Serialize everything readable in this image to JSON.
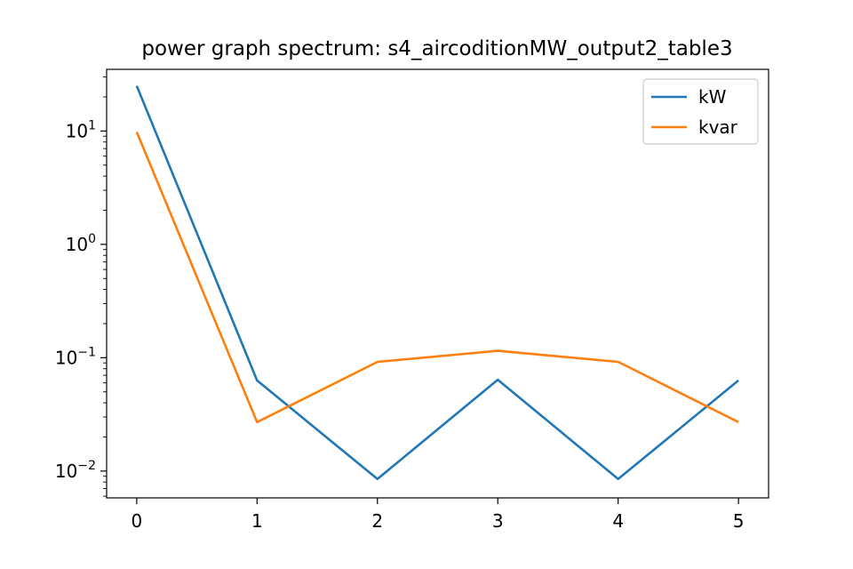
{
  "chart_data": {
    "type": "line",
    "title": "power graph spectrum: s4_aircoditionMW_output2_table3",
    "xlabel": "",
    "ylabel": "",
    "x": [
      0,
      1,
      2,
      3,
      4,
      5
    ],
    "xlim": [
      -0.25,
      5.25
    ],
    "xticks": [
      "0",
      "1",
      "2",
      "3",
      "4",
      "5"
    ],
    "yscale": "log",
    "ylim": [
      0.0058,
      35
    ],
    "yticks": [
      {
        "value": 0.01,
        "base": "10",
        "exp": "−2"
      },
      {
        "value": 0.1,
        "base": "10",
        "exp": "−1"
      },
      {
        "value": 1,
        "base": "10",
        "exp": "0"
      },
      {
        "value": 10,
        "base": "10",
        "exp": "1"
      }
    ],
    "grid": false,
    "legend_position": "upper right",
    "series": [
      {
        "name": "kW",
        "color": "#1f77b4",
        "values": [
          25.0,
          0.063,
          0.0085,
          0.064,
          0.0085,
          0.063
        ]
      },
      {
        "name": "kvar",
        "color": "#ff7f0e",
        "values": [
          9.8,
          0.027,
          0.092,
          0.115,
          0.092,
          0.027
        ]
      }
    ]
  }
}
